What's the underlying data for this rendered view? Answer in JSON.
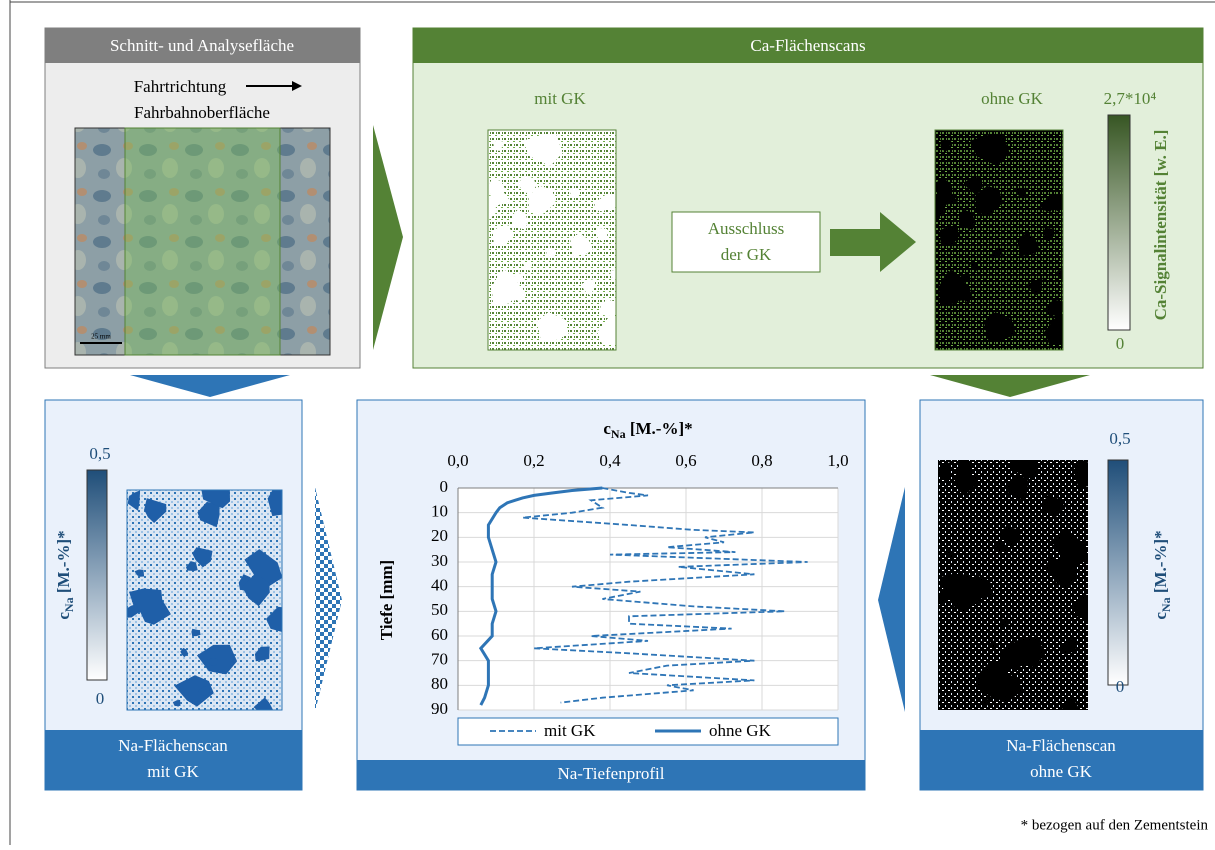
{
  "panels": {
    "section": {
      "title": "Schnitt- und Analysefläche",
      "direction": "Fahrtrichtung",
      "surface": "Fahrbahnoberfläche",
      "scale": "25 mm"
    },
    "ca_scans": {
      "title": "Ca-Flächenscans",
      "with_label": "mit GK",
      "without_label": "ohne GK",
      "step": [
        "Ausschluss",
        "der GK"
      ],
      "colorbar": {
        "max": "2,7*10⁴",
        "min": "0",
        "label": "Ca-Signalintensität [w. E.]"
      }
    },
    "na_with": {
      "title": [
        "Na-Flächenscan",
        "mit GK"
      ],
      "colorbar": {
        "max": "0,5",
        "min": "0",
        "label": {
          "symbol": "c",
          "subscript": "Na",
          "unit": " [M.-%]*"
        }
      }
    },
    "na_without": {
      "title": [
        "Na-Flächenscan",
        "ohne GK"
      ],
      "colorbar": {
        "max": "0,5",
        "min": "0",
        "label": {
          "symbol": "c",
          "subscript": "Na",
          "unit": " [M.-%]*"
        }
      }
    },
    "profile": {
      "title": "Na-Tiefenprofil"
    }
  },
  "chart_data": {
    "type": "line",
    "xlabel": {
      "symbol": "c",
      "subscript": "Na",
      "unit": " [M.-%]*"
    },
    "ylabel": "Tiefe [mm]",
    "xlim": [
      0,
      1
    ],
    "xticks": [
      {
        "value": 0,
        "label": "0,0"
      },
      {
        "value": 0.2,
        "label": "0,2"
      },
      {
        "value": 0.4,
        "label": "0,4"
      },
      {
        "value": 0.6,
        "label": "0,6"
      },
      {
        "value": 0.8,
        "label": "0,8"
      },
      {
        "value": 1,
        "label": "1,0"
      }
    ],
    "ylim": [
      0,
      90
    ],
    "yticks": [
      0,
      10,
      20,
      30,
      40,
      50,
      60,
      70,
      80,
      90
    ],
    "y_inverted": true,
    "grid": true,
    "series": [
      {
        "name": "mit GK",
        "color": "#2e75b6",
        "dash": "dashed",
        "x": [
          0,
          2,
          3,
          5,
          8,
          10,
          12,
          15,
          17,
          18,
          20,
          22,
          24,
          26,
          27,
          30,
          32,
          35,
          38,
          40,
          42,
          45,
          48,
          50,
          52,
          55,
          57,
          60,
          62,
          65,
          67,
          70,
          72,
          75,
          78,
          80,
          82,
          85,
          87
        ],
        "values": [
          0.38,
          0.45,
          0.5,
          0.35,
          0.38,
          0.3,
          0.17,
          0.45,
          0.62,
          0.78,
          0.65,
          0.7,
          0.55,
          0.73,
          0.4,
          0.92,
          0.58,
          0.78,
          0.45,
          0.3,
          0.48,
          0.38,
          0.62,
          0.86,
          0.45,
          0.45,
          0.72,
          0.35,
          0.5,
          0.2,
          0.45,
          0.78,
          0.55,
          0.45,
          0.78,
          0.55,
          0.62,
          0.38,
          0.27
        ]
      },
      {
        "name": "ohne GK",
        "color": "#2e75b6",
        "dash": "solid",
        "x": [
          0,
          1,
          2,
          3,
          4,
          5,
          6,
          8,
          10,
          15,
          20,
          25,
          30,
          35,
          40,
          45,
          50,
          55,
          60,
          65,
          70,
          75,
          80,
          85,
          88
        ],
        "values": [
          0.38,
          0.3,
          0.25,
          0.2,
          0.17,
          0.15,
          0.13,
          0.11,
          0.1,
          0.08,
          0.08,
          0.09,
          0.1,
          0.09,
          0.09,
          0.09,
          0.1,
          0.09,
          0.09,
          0.06,
          0.08,
          0.08,
          0.08,
          0.07,
          0.06
        ]
      }
    ]
  },
  "footnote": "* bezogen auf den Zementstein"
}
